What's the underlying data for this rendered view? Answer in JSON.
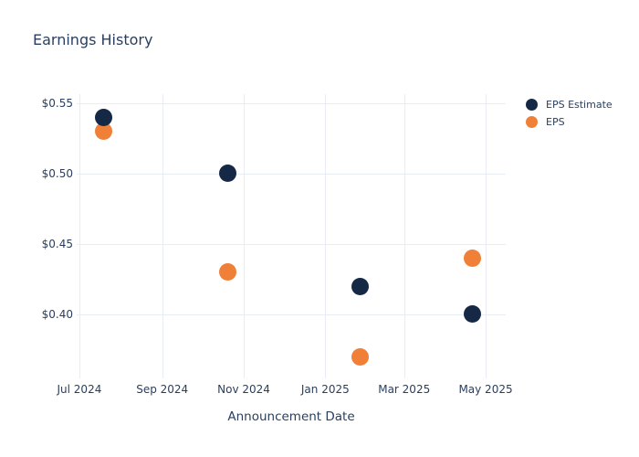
{
  "colors": {
    "background": "#ffffff",
    "text": "#2a3f5f",
    "gridline": "#e7ecf5",
    "eps_estimate": "#152947",
    "eps": "#f08038"
  },
  "chart_data": {
    "type": "scatter",
    "title": "Earnings History",
    "xlabel": "Announcement Date",
    "ylabel": "",
    "grid": true,
    "legend_position": "top-right-outside",
    "x_range": [
      "2024-06-29",
      "2025-05-16"
    ],
    "y_range": [
      0.3546,
      0.5563
    ],
    "x_ticks": [
      {
        "label": "Jul 2024",
        "date": "2024-07-01"
      },
      {
        "label": "Sep 2024",
        "date": "2024-09-01"
      },
      {
        "label": "Nov 2024",
        "date": "2024-11-01"
      },
      {
        "label": "Jan 2025",
        "date": "2025-01-01"
      },
      {
        "label": "Mar 2025",
        "date": "2025-03-01"
      },
      {
        "label": "May 2025",
        "date": "2025-05-01"
      }
    ],
    "y_ticks": [
      {
        "label": "$0.55",
        "value": 0.55
      },
      {
        "label": "$0.50",
        "value": 0.5
      },
      {
        "label": "$0.45",
        "value": 0.45
      },
      {
        "label": "$0.40",
        "value": 0.4
      }
    ],
    "x": [
      "2024-07-19",
      "2024-10-20",
      "2025-01-27",
      "2025-04-21"
    ],
    "series": [
      {
        "name": "EPS Estimate",
        "color": "#152947",
        "values": [
          0.54,
          0.5,
          0.42,
          0.4
        ]
      },
      {
        "name": "EPS",
        "color": "#f08038",
        "values": [
          0.53,
          0.43,
          0.37,
          0.44
        ]
      }
    ],
    "marker": {
      "size": 19,
      "legend_size": 13
    }
  }
}
